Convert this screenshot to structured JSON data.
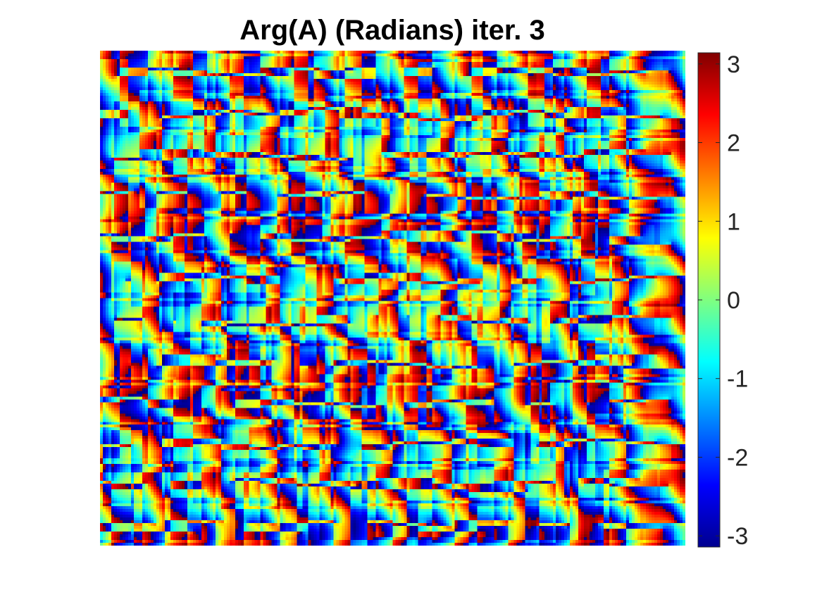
{
  "chart_data": {
    "type": "heatmap",
    "title": "Arg(A) (Radians) iter. 3",
    "xlabel": "",
    "ylabel": "",
    "colormap": "jet",
    "color_range": [
      -3.14159,
      3.14159
    ],
    "colorbar": {
      "ticks": [
        3,
        2,
        1,
        0,
        -1,
        -2,
        -3
      ],
      "tick_labels": [
        "3",
        "2",
        "1",
        "0",
        "-1",
        "-2",
        "-3"
      ],
      "placement": "right"
    },
    "axes_visible": false,
    "grid": false,
    "pattern": {
      "rows": 6,
      "cols": 20
    }
  }
}
